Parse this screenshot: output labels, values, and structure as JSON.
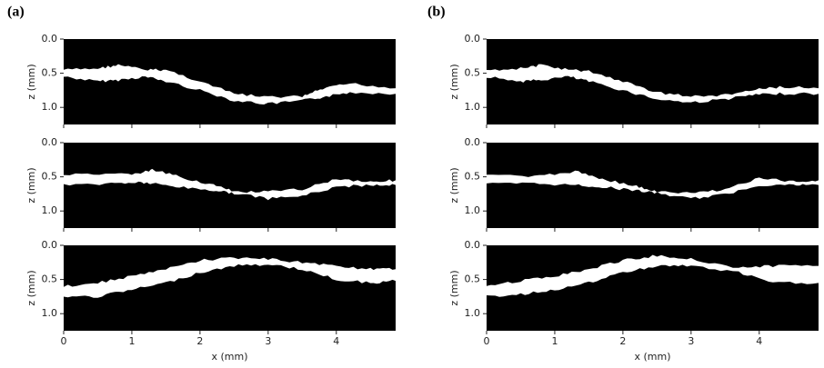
{
  "panels": [
    {
      "label": "(a)"
    },
    {
      "label": "(b)"
    }
  ],
  "axes": {
    "xlabel": "x (mm)",
    "ylabel": "z (mm)",
    "xlim": [
      0,
      4.87
    ],
    "xticks": [
      0,
      1,
      2,
      3,
      4
    ],
    "ylim": [
      0,
      1.25
    ],
    "yticks": [
      {
        "value": 0,
        "label": "0.0"
      },
      0.5,
      {
        "value": 1,
        "label": "1.0"
      }
    ]
  }
}
